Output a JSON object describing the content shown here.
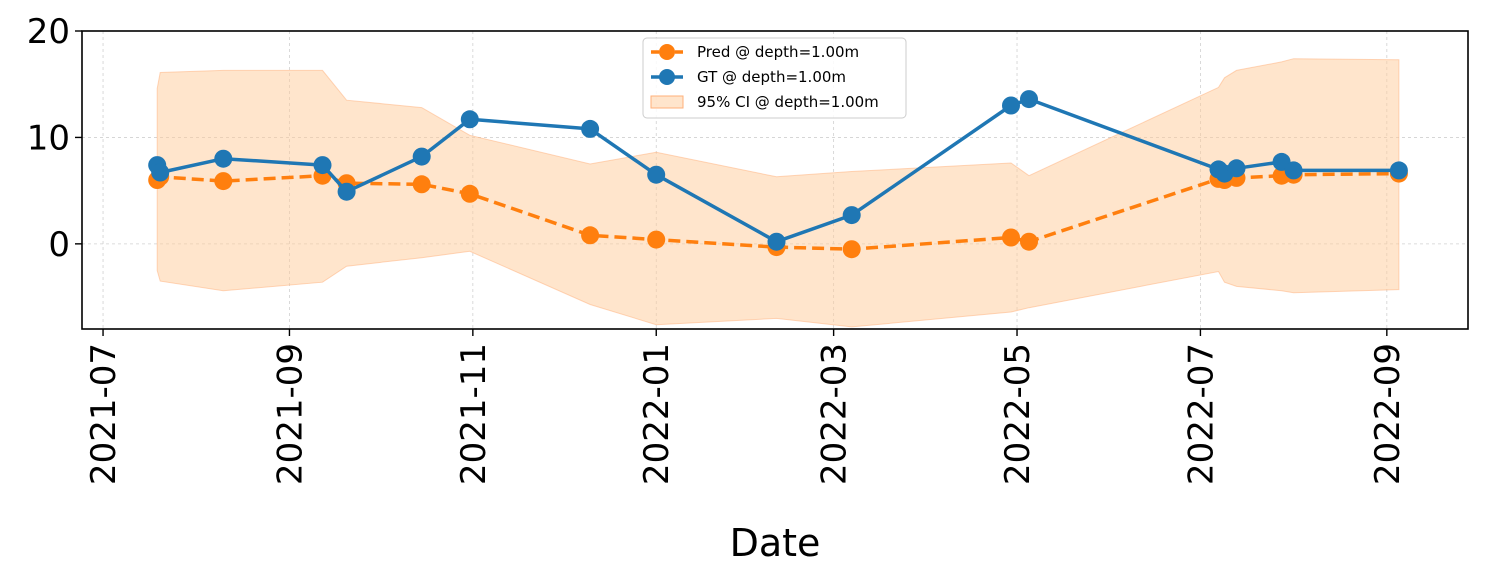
{
  "chart_data": {
    "type": "line",
    "xlabel": "Date",
    "ylabel": "",
    "xlim": [
      "2021-06-24",
      "2022-09-28"
    ],
    "ylim": [
      -8,
      20
    ],
    "x_ticks": [
      "2021-07",
      "2021-09",
      "2021-11",
      "2022-01",
      "2022-03",
      "2022-05",
      "2022-07",
      "2022-09"
    ],
    "y_ticks": [
      0,
      10,
      20
    ],
    "grid": true,
    "legend_position": "top-center",
    "series": [
      {
        "name": "Pred @ depth=1.00m",
        "color": "#ff7f0e",
        "style": "dashed",
        "x": [
          "2021-07-19",
          "2021-07-20",
          "2021-08-10",
          "2021-09-12",
          "2021-09-20",
          "2021-10-15",
          "2021-10-31",
          "2021-12-10",
          "2022-01-01",
          "2022-02-10",
          "2022-03-07",
          "2022-04-29",
          "2022-05-05",
          "2022-07-07",
          "2022-07-09",
          "2022-07-13",
          "2022-07-28",
          "2022-08-01",
          "2022-09-05"
        ],
        "y": [
          6.0,
          6.3,
          5.9,
          6.4,
          5.7,
          5.6,
          4.7,
          0.8,
          0.4,
          -0.3,
          -0.5,
          0.6,
          0.2,
          6.1,
          6.0,
          6.2,
          6.4,
          6.5,
          6.6
        ]
      },
      {
        "name": "GT @ depth=1.00m",
        "color": "#1f77b4",
        "style": "solid",
        "x": [
          "2021-07-19",
          "2021-07-20",
          "2021-08-10",
          "2021-09-12",
          "2021-09-20",
          "2021-10-15",
          "2021-10-31",
          "2021-12-10",
          "2022-01-01",
          "2022-02-10",
          "2022-03-07",
          "2022-04-29",
          "2022-05-05",
          "2022-07-07",
          "2022-07-09",
          "2022-07-13",
          "2022-07-28",
          "2022-08-01",
          "2022-09-05"
        ],
        "y": [
          7.4,
          6.7,
          8.0,
          7.4,
          4.9,
          8.2,
          11.7,
          10.8,
          6.5,
          0.2,
          2.7,
          13.0,
          13.6,
          7.0,
          6.6,
          7.1,
          7.7,
          6.9,
          6.9
        ]
      },
      {
        "name": "95% CI @ depth=1.00m",
        "color": "#ffcc99",
        "style": "band",
        "x": [
          "2021-07-19",
          "2021-07-20",
          "2021-08-10",
          "2021-09-12",
          "2021-09-20",
          "2021-10-15",
          "2021-10-31",
          "2021-12-10",
          "2022-01-01",
          "2022-02-10",
          "2022-03-07",
          "2022-04-29",
          "2022-05-05",
          "2022-07-07",
          "2022-07-09",
          "2022-07-13",
          "2022-07-28",
          "2022-08-01",
          "2022-09-05"
        ],
        "lower": [
          -2.5,
          -3.5,
          -4.4,
          -3.6,
          -2.1,
          -1.3,
          -0.7,
          -5.7,
          -7.6,
          -7.0,
          -7.8,
          -6.4,
          -6.0,
          -2.6,
          -3.6,
          -4.0,
          -4.4,
          -4.6,
          -4.3
        ],
        "upper": [
          14.6,
          16.1,
          16.3,
          16.3,
          13.5,
          12.8,
          10.2,
          7.5,
          8.6,
          6.3,
          6.8,
          7.6,
          6.4,
          14.7,
          15.6,
          16.3,
          17.1,
          17.4,
          17.3
        ]
      }
    ]
  }
}
